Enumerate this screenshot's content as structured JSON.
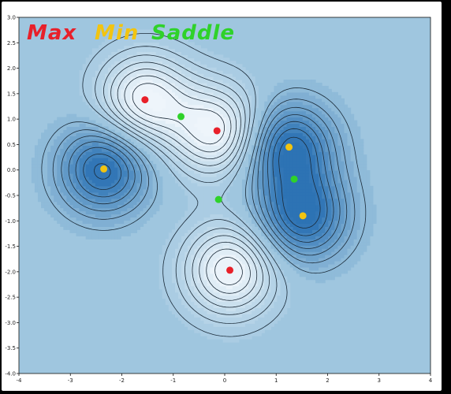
{
  "chart_data": {
    "type": "contour",
    "title": "",
    "xlabel": "",
    "ylabel": "",
    "xlim": [
      -4,
      4
    ],
    "ylim": [
      -4,
      3
    ],
    "x_ticks": [
      "-4",
      "-3",
      "-2",
      "-1",
      "0",
      "1",
      "2",
      "3",
      "4"
    ],
    "y_ticks": [
      "3.0",
      "2.5",
      "2.0",
      "1.5",
      "1.0",
      "0.5",
      "0.0",
      "-0.5",
      "-1.0",
      "-1.5",
      "-2.0",
      "-2.5",
      "-3.0",
      "-3.5",
      "-4.0"
    ],
    "legend": [
      {
        "label": "Max",
        "color": "#e8202a"
      },
      {
        "label": "Min",
        "color": "#f2c410"
      },
      {
        "label": "Saddle",
        "color": "#2fd22a"
      }
    ],
    "points": {
      "max": [
        {
          "x": -1.55,
          "y": 1.38
        },
        {
          "x": -0.15,
          "y": 0.77
        },
        {
          "x": 0.1,
          "y": -1.97
        }
      ],
      "min": [
        {
          "x": -2.35,
          "y": 0.02
        },
        {
          "x": 1.25,
          "y": 0.45
        },
        {
          "x": 1.52,
          "y": -0.9
        }
      ],
      "saddle": [
        {
          "x": -0.85,
          "y": 1.05
        },
        {
          "x": -0.12,
          "y": -0.58
        },
        {
          "x": 1.35,
          "y": -0.18
        }
      ]
    },
    "colors": {
      "frame": "#000000",
      "background": "#9fc6df",
      "lows": "#2d73b4",
      "highs": "#eef5fb",
      "contour_line": "#1a2a38"
    }
  }
}
